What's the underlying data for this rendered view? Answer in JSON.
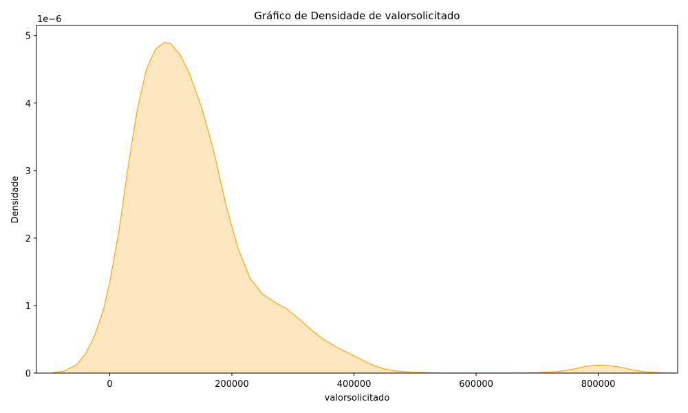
{
  "chart_data": {
    "type": "area",
    "title": "Gráfico de Densidade de valorsolicitado",
    "xlabel": "valorsolicitado",
    "ylabel": "Densidade",
    "y_offset_label": "1e−6",
    "y_scale": 1e-06,
    "xlim": [
      -120000,
      930000
    ],
    "ylim": [
      0,
      5.15
    ],
    "x_ticks": [
      0,
      200000,
      400000,
      600000,
      800000
    ],
    "x_tick_labels": [
      "0",
      "200000",
      "400000",
      "600000",
      "800000"
    ],
    "y_ticks": [
      0,
      1,
      2,
      3,
      4,
      5
    ],
    "y_tick_labels": [
      "0",
      "1",
      "2",
      "3",
      "4",
      "5"
    ],
    "grid": false,
    "series": [
      {
        "color": "#FFA500",
        "fill": "#FDE7C0",
        "x": [
          -95000,
          -75000,
          -55000,
          -40000,
          -25000,
          -10000,
          0,
          15000,
          30000,
          45000,
          60000,
          75000,
          90000,
          100000,
          115000,
          130000,
          150000,
          170000,
          190000,
          210000,
          230000,
          250000,
          270000,
          290000,
          310000,
          330000,
          350000,
          370000,
          390000,
          410000,
          430000,
          450000,
          470000,
          500000,
          550000,
          600000,
          650000,
          700000,
          730000,
          760000,
          780000,
          800000,
          820000,
          840000,
          860000,
          880000,
          900000,
          925000
        ],
        "y": [
          0.0,
          0.03,
          0.12,
          0.28,
          0.55,
          0.95,
          1.35,
          2.1,
          3.05,
          3.9,
          4.5,
          4.8,
          4.9,
          4.88,
          4.72,
          4.45,
          3.95,
          3.3,
          2.5,
          1.85,
          1.4,
          1.17,
          1.05,
          0.95,
          0.8,
          0.64,
          0.5,
          0.39,
          0.3,
          0.21,
          0.12,
          0.06,
          0.03,
          0.01,
          0.0,
          0.0,
          0.0,
          0.005,
          0.02,
          0.06,
          0.1,
          0.12,
          0.11,
          0.08,
          0.04,
          0.015,
          0.005,
          0.0
        ]
      }
    ]
  }
}
